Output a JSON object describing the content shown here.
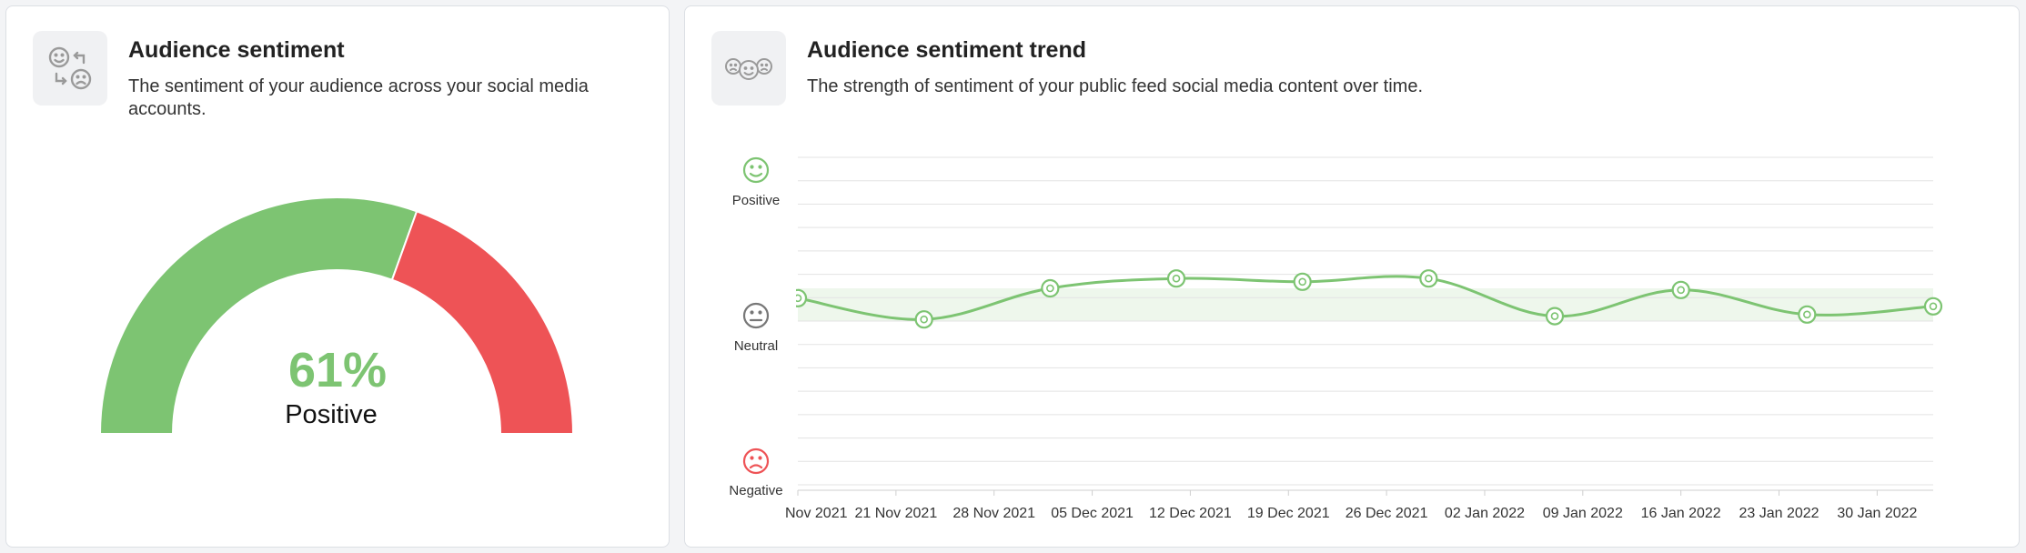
{
  "sentiment_card": {
    "title": "Audience sentiment",
    "subtitle": "The sentiment of your audience across your social media accounts.",
    "icon": "sentiment-swap-icon"
  },
  "trend_card": {
    "title": "Audience sentiment trend",
    "subtitle": "The strength of sentiment of your public feed social media content over time.",
    "icon": "sentiment-faces-icon"
  },
  "colors": {
    "positive": "#7dc472",
    "negative": "#ee5356",
    "neutral": "#777777",
    "line": "#7dc472",
    "band": "#eef7ec",
    "grid": "#e3e3e3"
  },
  "chart_data": [
    {
      "type": "gauge",
      "value_percent": 61,
      "value_label": "61%",
      "label": "Positive",
      "segments": [
        {
          "name": "Positive",
          "percent": 61
        },
        {
          "name": "Negative",
          "percent": 39
        }
      ]
    },
    {
      "type": "line",
      "y_categories": [
        "Positive",
        "Neutral",
        "Negative"
      ],
      "ylim": [
        -1,
        1
      ],
      "grid": true,
      "neutral_band": [
        0,
        0.2
      ],
      "x_tick_labels": [
        "Nov 2021",
        "21 Nov 2021",
        "28 Nov 2021",
        "05 Dec 2021",
        "12 Dec 2021",
        "19 Dec 2021",
        "26 Dec 2021",
        "02 Jan 2022",
        "09 Jan 2022",
        "16 Jan 2022",
        "23 Jan 2022",
        "30 Jan 2022"
      ],
      "x": [
        "2021-11-14",
        "2021-11-23",
        "2021-12-02",
        "2021-12-11",
        "2021-12-20",
        "2021-12-29",
        "2022-01-07",
        "2022-01-16",
        "2022-01-25",
        "2022-02-03"
      ],
      "values": [
        0.14,
        0.01,
        0.2,
        0.26,
        0.24,
        0.26,
        0.03,
        0.19,
        0.04,
        0.09
      ]
    }
  ]
}
